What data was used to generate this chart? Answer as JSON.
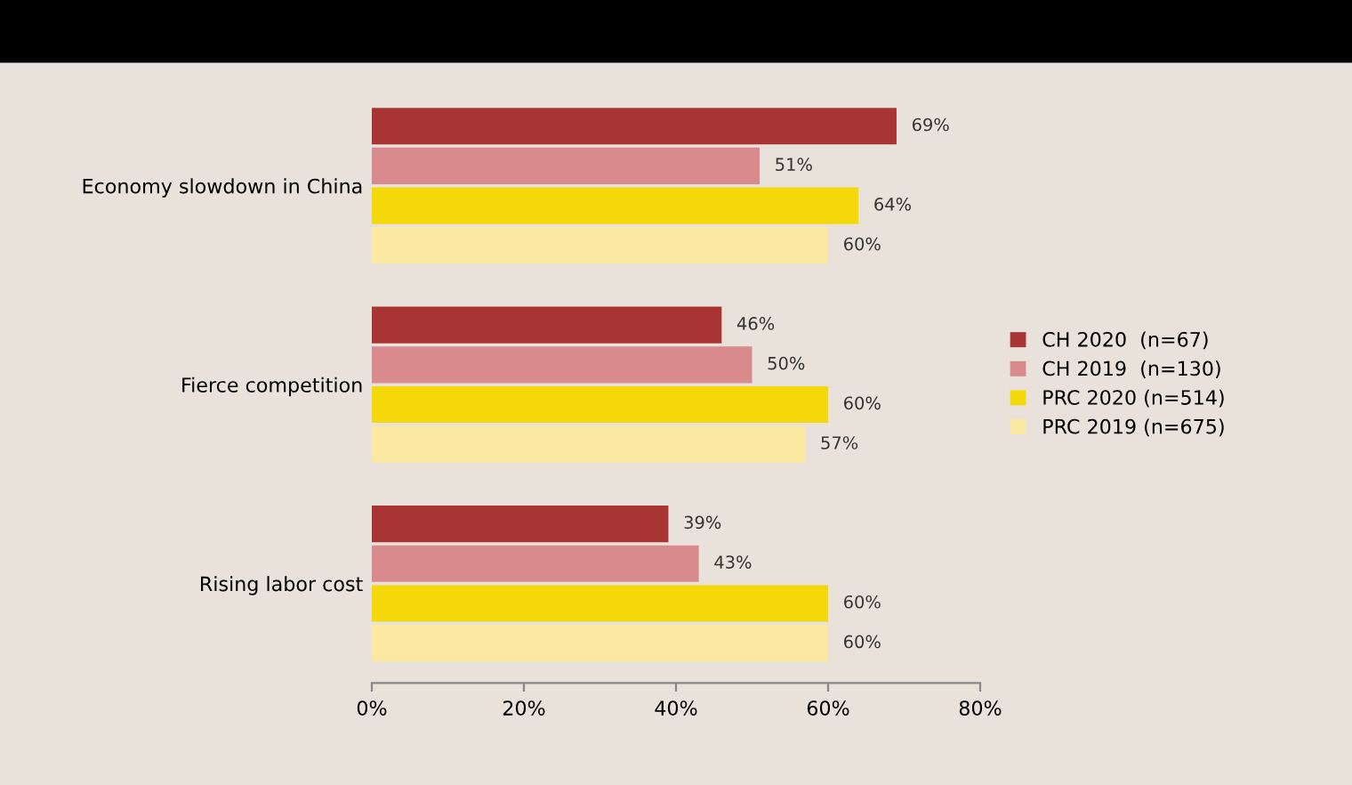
{
  "chart_data": {
    "type": "bar",
    "orientation": "horizontal",
    "categories": [
      "Economy slowdown in China",
      "Fierce competition",
      "Rising labor cost"
    ],
    "series": [
      {
        "name": "CH 2020  (n=67)",
        "color": "#a83434",
        "values": [
          69,
          46,
          39
        ],
        "value_labels": [
          "69%",
          "46%",
          "39%"
        ]
      },
      {
        "name": "CH 2019  (n=130)",
        "color": "#d98a8c",
        "values": [
          51,
          50,
          43
        ],
        "value_labels": [
          "51%",
          "50%",
          "43%"
        ]
      },
      {
        "name": "PRC 2020 (n=514)",
        "color": "#f4d80a",
        "values": [
          64,
          60,
          60
        ],
        "value_labels": [
          "64%",
          "60%",
          "60%"
        ]
      },
      {
        "name": "PRC 2019 (n=675)",
        "color": "#fbe9a2",
        "values": [
          60,
          57,
          60
        ],
        "value_labels": [
          "60%",
          "57%",
          "60%"
        ]
      }
    ],
    "xlim": [
      0,
      80
    ],
    "xticks": [
      {
        "value": 0,
        "label": "0%"
      },
      {
        "value": 20,
        "label": "20%"
      },
      {
        "value": 40,
        "label": "40%"
      },
      {
        "value": 60,
        "label": "60%"
      },
      {
        "value": 80,
        "label": "80%"
      }
    ],
    "grid": false,
    "legend": "right"
  }
}
